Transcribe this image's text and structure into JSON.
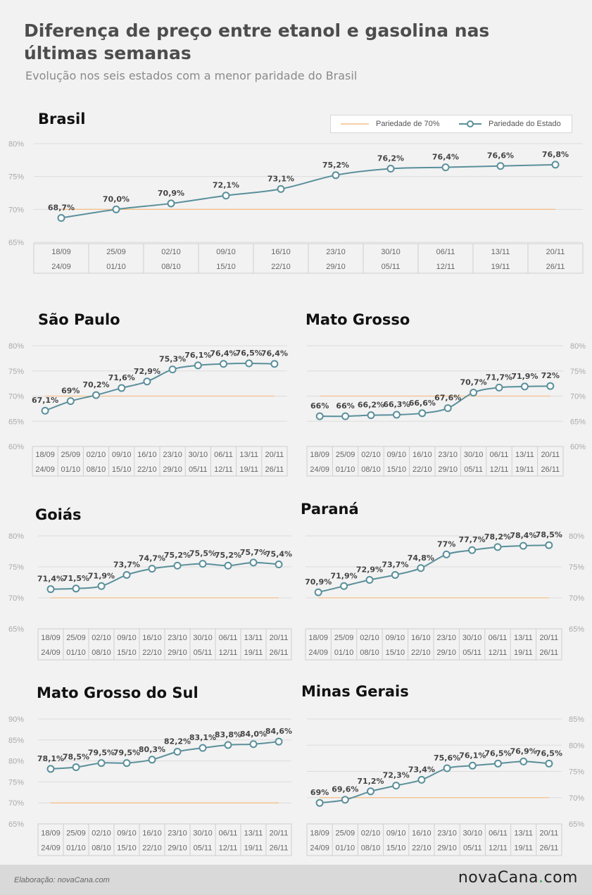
{
  "header": {
    "title": "Diferença de preço entre etanol e gasolina nas últimas semanas",
    "subtitle": "Evolução nos seis estados com a menor paridade do Brasil"
  },
  "legend": {
    "reference_label": "Pariedade de 70%",
    "state_label": "Pariedade do Estado"
  },
  "colors": {
    "line": "#5a8f9b",
    "reference": "#f5c089",
    "marker_fill": "#ffffff",
    "grid": "#dcdcdc"
  },
  "footer": {
    "credit": "Elaboração: novaCana.com",
    "logo_main": "novaCana",
    "logo_dot": ".",
    "logo_tld": "com"
  },
  "chart_data": [
    {
      "type": "line",
      "title": "Brasil",
      "categories": [
        [
          "18/09",
          "24/09"
        ],
        [
          "25/09",
          "01/10"
        ],
        [
          "02/10",
          "08/10"
        ],
        [
          "09/10",
          "15/10"
        ],
        [
          "16/10",
          "22/10"
        ],
        [
          "23/10",
          "29/10"
        ],
        [
          "30/10",
          "05/11"
        ],
        [
          "06/11",
          "12/11"
        ],
        [
          "13/11",
          "19/11"
        ],
        [
          "20/11",
          "26/11"
        ]
      ],
      "values": [
        68.7,
        70.0,
        70.9,
        72.1,
        73.1,
        75.2,
        76.2,
        76.4,
        76.6,
        76.8
      ],
      "value_labels": [
        "68,7%",
        "70,0%",
        "70,9%",
        "72,1%",
        "73,1%",
        "75,2%",
        "76,2%",
        "76,4%",
        "76,6%",
        "76,8%"
      ],
      "reference": 70,
      "ylim": [
        65,
        80
      ],
      "yticks": [
        {
          "v": 80,
          "label": "80%"
        },
        {
          "v": 75,
          "label": "75%"
        },
        {
          "v": 70,
          "label": "70%"
        },
        {
          "v": 65,
          "label": "65%"
        }
      ],
      "yaxis_side": "left",
      "legend_position": "top-right"
    },
    {
      "type": "line",
      "title": "São Paulo",
      "categories": [
        [
          "18/09",
          "24/09"
        ],
        [
          "25/09",
          "01/10"
        ],
        [
          "02/10",
          "08/10"
        ],
        [
          "09/10",
          "15/10"
        ],
        [
          "16/10",
          "22/10"
        ],
        [
          "23/10",
          "29/10"
        ],
        [
          "30/10",
          "05/11"
        ],
        [
          "06/11",
          "12/11"
        ],
        [
          "13/11",
          "19/11"
        ],
        [
          "20/11",
          "26/11"
        ]
      ],
      "values": [
        67.1,
        69,
        70.2,
        71.6,
        72.9,
        75.3,
        76.1,
        76.4,
        76.5,
        76.4
      ],
      "value_labels": [
        "67,1%",
        "69%",
        "70,2%",
        "71,6%",
        "72,9%",
        "75,3%",
        "76,1%",
        "76,4%",
        "76,5%",
        "76,4%"
      ],
      "reference": 70,
      "ylim": [
        60,
        80
      ],
      "yticks": [
        {
          "v": 80,
          "label": "80%"
        },
        {
          "v": 75,
          "label": "75%"
        },
        {
          "v": 70,
          "label": "70%"
        },
        {
          "v": 65,
          "label": "65%"
        },
        {
          "v": 60,
          "label": "60%"
        }
      ],
      "yaxis_side": "left"
    },
    {
      "type": "line",
      "title": "Mato Grosso",
      "categories": [
        [
          "18/09",
          "24/09"
        ],
        [
          "25/09",
          "01/10"
        ],
        [
          "02/10",
          "08/10"
        ],
        [
          "09/10",
          "15/10"
        ],
        [
          "16/10",
          "22/10"
        ],
        [
          "23/10",
          "29/10"
        ],
        [
          "30/10",
          "05/11"
        ],
        [
          "06/11",
          "12/11"
        ],
        [
          "13/11",
          "19/11"
        ],
        [
          "20/11",
          "26/11"
        ]
      ],
      "values": [
        66,
        66,
        66.2,
        66.3,
        66.6,
        67.6,
        70.7,
        71.7,
        71.9,
        72
      ],
      "value_labels": [
        "66%",
        "66%",
        "66,2%",
        "66,3%",
        "66,6%",
        "67,6%",
        "70,7%",
        "71,7%",
        "71,9%",
        "72%"
      ],
      "reference": 70,
      "ylim": [
        60,
        80
      ],
      "yticks": [
        {
          "v": 80,
          "label": "80%"
        },
        {
          "v": 75,
          "label": "75%"
        },
        {
          "v": 70,
          "label": "70%"
        },
        {
          "v": 65,
          "label": "65%"
        },
        {
          "v": 60,
          "label": "60%"
        }
      ],
      "yaxis_side": "right"
    },
    {
      "type": "line",
      "title": "Goiás",
      "categories": [
        [
          "18/09",
          "24/09"
        ],
        [
          "25/09",
          "01/10"
        ],
        [
          "02/10",
          "08/10"
        ],
        [
          "09/10",
          "15/10"
        ],
        [
          "16/10",
          "22/10"
        ],
        [
          "23/10",
          "29/10"
        ],
        [
          "30/10",
          "05/11"
        ],
        [
          "06/11",
          "12/11"
        ],
        [
          "13/11",
          "19/11"
        ],
        [
          "20/11",
          "26/11"
        ]
      ],
      "values": [
        71.4,
        71.5,
        71.9,
        73.7,
        74.7,
        75.2,
        75.5,
        75.2,
        75.7,
        75.4
      ],
      "value_labels": [
        "71,4%",
        "71,5%",
        "71,9%",
        "73,7%",
        "74,7%",
        "75,2%",
        "75,5%",
        "75,2%",
        "75,7%",
        "75,4%"
      ],
      "reference": 70,
      "ylim": [
        65,
        80
      ],
      "yticks": [
        {
          "v": 80,
          "label": "80%"
        },
        {
          "v": 75,
          "label": "75%"
        },
        {
          "v": 70,
          "label": "70%"
        },
        {
          "v": 65,
          "label": "65%"
        }
      ],
      "yaxis_side": "left"
    },
    {
      "type": "line",
      "title": "Paraná",
      "categories": [
        [
          "18/09",
          "24/09"
        ],
        [
          "25/09",
          "01/10"
        ],
        [
          "02/10",
          "08/10"
        ],
        [
          "09/10",
          "15/10"
        ],
        [
          "16/10",
          "22/10"
        ],
        [
          "23/10",
          "29/10"
        ],
        [
          "30/10",
          "05/11"
        ],
        [
          "06/11",
          "12/11"
        ],
        [
          "13/11",
          "19/11"
        ],
        [
          "20/11",
          "26/11"
        ]
      ],
      "values": [
        70.9,
        71.9,
        72.9,
        73.7,
        74.8,
        77,
        77.7,
        78.2,
        78.4,
        78.5
      ],
      "value_labels": [
        "70,9%",
        "71,9%",
        "72,9%",
        "73,7%",
        "74,8%",
        "77%",
        "77,7%",
        "78,2%",
        "78,4%",
        "78,5%"
      ],
      "reference": 70,
      "ylim": [
        65,
        80
      ],
      "yticks": [
        {
          "v": 80,
          "label": "80%"
        },
        {
          "v": 75,
          "label": "75%"
        },
        {
          "v": 70,
          "label": "70%"
        },
        {
          "v": 65,
          "label": "65%"
        }
      ],
      "yaxis_side": "right"
    },
    {
      "type": "line",
      "title": "Mato Grosso do Sul",
      "categories": [
        [
          "18/09",
          "24/09"
        ],
        [
          "25/09",
          "01/10"
        ],
        [
          "02/10",
          "08/10"
        ],
        [
          "09/10",
          "15/10"
        ],
        [
          "16/10",
          "22/10"
        ],
        [
          "23/10",
          "29/10"
        ],
        [
          "30/10",
          "05/11"
        ],
        [
          "06/11",
          "12/11"
        ],
        [
          "13/11",
          "19/11"
        ],
        [
          "20/11",
          "26/11"
        ]
      ],
      "values": [
        78.1,
        78.5,
        79.5,
        79.5,
        80.3,
        82.2,
        83.1,
        83.8,
        84.0,
        84.6
      ],
      "value_labels": [
        "78,1%",
        "78,5%",
        "79,5%",
        "79,5%",
        "80,3%",
        "82,2%",
        "83,1%",
        "83,8%",
        "84,0%",
        "84,6%"
      ],
      "reference": 70,
      "ylim": [
        65,
        90
      ],
      "yticks": [
        {
          "v": 90,
          "label": "90%"
        },
        {
          "v": 85,
          "label": "85%"
        },
        {
          "v": 80,
          "label": "80%"
        },
        {
          "v": 75,
          "label": "75%"
        },
        {
          "v": 70,
          "label": "70%"
        },
        {
          "v": 65,
          "label": "65%"
        }
      ],
      "yaxis_side": "left"
    },
    {
      "type": "line",
      "title": "Minas Gerais",
      "categories": [
        [
          "18/09",
          "24/09"
        ],
        [
          "25/09",
          "01/10"
        ],
        [
          "02/10",
          "08/10"
        ],
        [
          "09/10",
          "15/10"
        ],
        [
          "16/10",
          "22/10"
        ],
        [
          "23/10",
          "29/10"
        ],
        [
          "30/10",
          "05/11"
        ],
        [
          "06/11",
          "12/11"
        ],
        [
          "13/11",
          "19/11"
        ],
        [
          "20/11",
          "26/11"
        ]
      ],
      "values": [
        69,
        69.6,
        71.2,
        72.3,
        73.4,
        75.6,
        76.1,
        76.5,
        76.9,
        76.5
      ],
      "value_labels": [
        "69%",
        "69,6%",
        "71,2%",
        "72,3%",
        "73,4%",
        "75,6%",
        "76,1%",
        "76,5%",
        "76,9%",
        "76,5%"
      ],
      "reference": 70,
      "ylim": [
        65,
        85
      ],
      "yticks": [
        {
          "v": 85,
          "label": "85%"
        },
        {
          "v": 80,
          "label": "80%"
        },
        {
          "v": 75,
          "label": "75%"
        },
        {
          "v": 70,
          "label": "70%"
        },
        {
          "v": 65,
          "label": "65%"
        }
      ],
      "yaxis_side": "right"
    }
  ]
}
